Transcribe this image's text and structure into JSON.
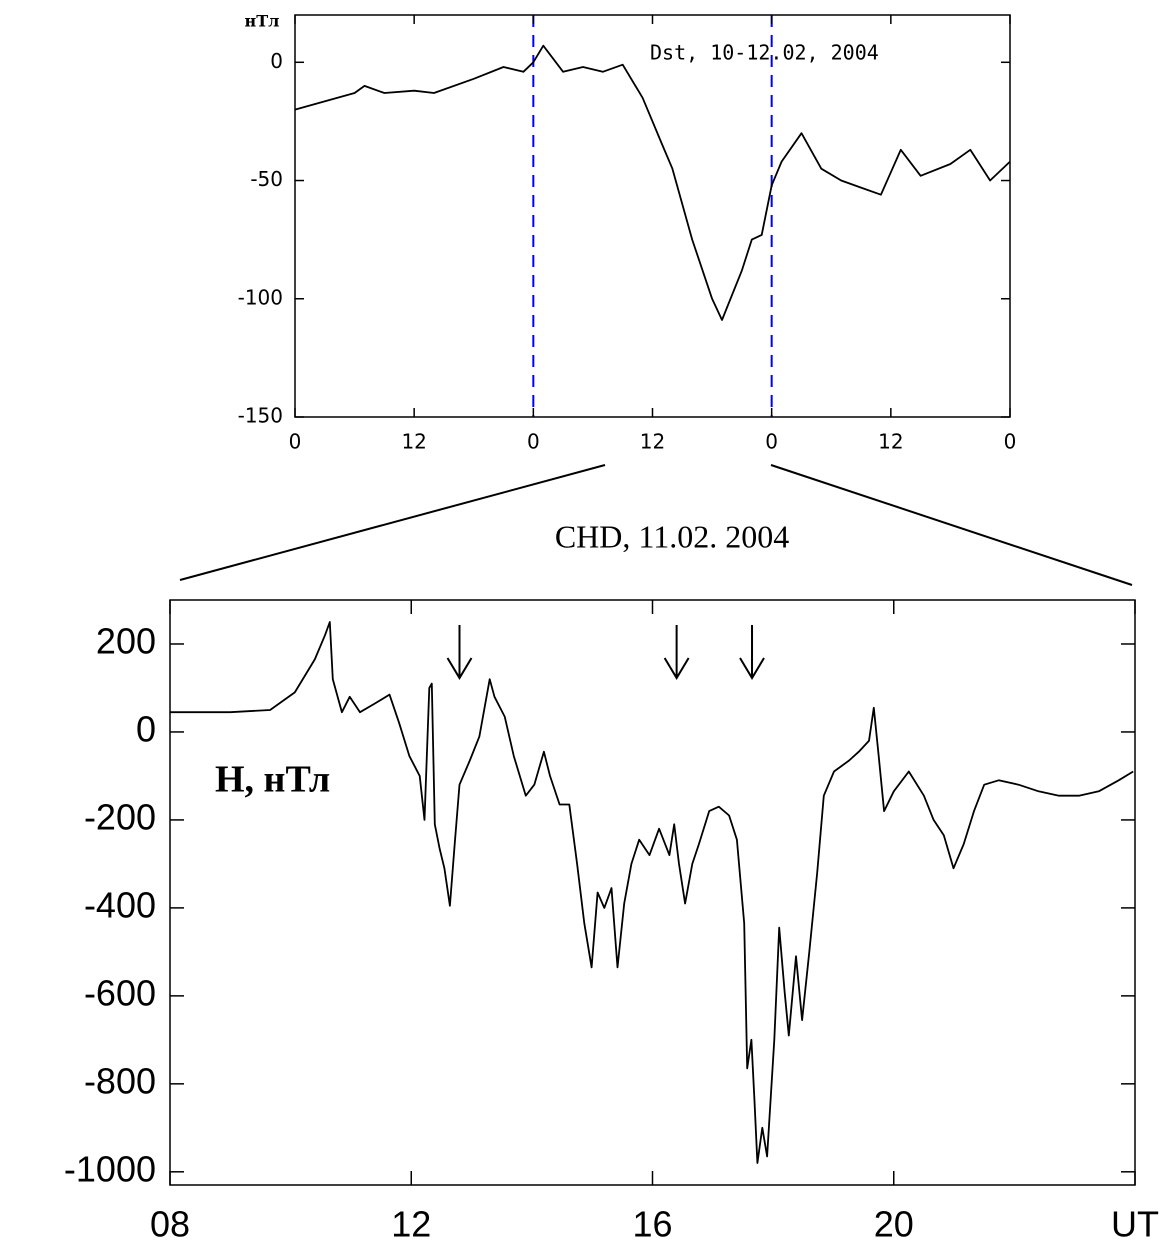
{
  "chart_data": [
    {
      "type": "line",
      "annotation": "Dst, 10-12.02, 2004",
      "y_label": "нТл",
      "x": [
        0,
        6,
        7,
        9,
        12,
        14,
        18,
        21,
        23,
        24,
        25,
        27,
        29,
        31,
        33,
        35,
        37,
        38,
        40,
        42,
        43,
        45,
        46,
        47,
        48,
        49,
        51,
        53,
        55,
        57,
        59,
        61,
        63,
        66,
        68,
        70,
        72
      ],
      "values": [
        -20,
        -13,
        -10,
        -13,
        -12,
        -13,
        -7,
        -2,
        -4,
        0,
        7,
        -4,
        -2,
        -4,
        -1,
        -15,
        -35,
        -45,
        -75,
        -100,
        -109,
        -88,
        -75,
        -73,
        -52,
        -42,
        -30,
        -45,
        -50,
        -53,
        -56,
        -37,
        -48,
        -43,
        -37,
        -50,
        -42
      ],
      "color": "#000000",
      "xlim": [
        0,
        72
      ],
      "ylim": [
        -150,
        20
      ],
      "xticks": [
        0,
        12,
        {
          "value": 24,
          "label": "0"
        },
        {
          "value": 36,
          "label": "12"
        },
        {
          "value": 48,
          "label": "0"
        },
        {
          "value": 60,
          "label": "12"
        },
        {
          "value": 72,
          "label": "0"
        }
      ],
      "yticks": [
        0,
        -50,
        -100,
        -150
      ],
      "vlines": [
        24,
        48
      ],
      "vline_color": "#0000ff"
    },
    {
      "type": "line",
      "title": "CHD, 11.02. 2004",
      "annotation": "H, нТл",
      "x": [
        8.0,
        9.0,
        9.66,
        10.07,
        10.4,
        10.57,
        10.65,
        10.7,
        10.85,
        10.98,
        11.15,
        11.4,
        11.64,
        11.8,
        11.97,
        12.14,
        12.22,
        12.3,
        12.34,
        12.39,
        12.47,
        12.55,
        12.64,
        12.72,
        12.8,
        12.97,
        13.13,
        13.3,
        13.38,
        13.55,
        13.7,
        13.9,
        14.04,
        14.2,
        14.3,
        14.46,
        14.62,
        14.75,
        14.87,
        14.99,
        15.09,
        15.2,
        15.32,
        15.42,
        15.53,
        15.65,
        15.78,
        15.95,
        16.11,
        16.28,
        16.36,
        16.44,
        16.54,
        16.66,
        16.77,
        16.94,
        17.1,
        17.27,
        17.4,
        17.52,
        17.57,
        17.64,
        17.69,
        17.74,
        17.82,
        17.9,
        18.02,
        18.1,
        18.19,
        18.26,
        18.38,
        18.48,
        18.6,
        18.73,
        18.84,
        19.01,
        19.26,
        19.42,
        19.59,
        19.67,
        19.75,
        19.84,
        20.0,
        20.25,
        20.5,
        20.66,
        20.83,
        20.99,
        21.16,
        21.33,
        21.5,
        21.74,
        22.07,
        22.4,
        22.74,
        23.07,
        23.4,
        23.73,
        23.97
      ],
      "values": [
        45,
        45,
        50,
        90,
        165,
        220,
        250,
        120,
        45,
        80,
        45,
        65,
        85,
        20,
        -55,
        -100,
        -200,
        100,
        110,
        -210,
        -265,
        -310,
        -395,
        -255,
        -120,
        -65,
        -10,
        120,
        80,
        35,
        -55,
        -145,
        -120,
        -45,
        -100,
        -165,
        -165,
        -300,
        -435,
        -535,
        -365,
        -400,
        -355,
        -535,
        -390,
        -300,
        -245,
        -280,
        -220,
        -280,
        -210,
        -300,
        -390,
        -300,
        -255,
        -180,
        -170,
        -190,
        -245,
        -435,
        -765,
        -700,
        -835,
        -980,
        -900,
        -965,
        -700,
        -445,
        -590,
        -690,
        -510,
        -655,
        -500,
        -320,
        -145,
        -90,
        -65,
        -45,
        -20,
        55,
        -55,
        -180,
        -135,
        -90,
        -145,
        -200,
        -235,
        -310,
        -255,
        -180,
        -120,
        -110,
        -120,
        -135,
        -145,
        -145,
        -135,
        -110,
        -90
      ],
      "color": "#000000",
      "xlim": [
        8,
        24
      ],
      "ylim": [
        -1030,
        300
      ],
      "xticks": [
        {
          "value": 8,
          "label": "08"
        },
        12,
        16,
        20,
        {
          "value": 24,
          "label": "UT"
        }
      ],
      "yticks": [
        200,
        0,
        -200,
        -400,
        -600,
        -800,
        -1000
      ],
      "arrows": [
        12.8,
        16.4,
        17.65
      ]
    }
  ]
}
